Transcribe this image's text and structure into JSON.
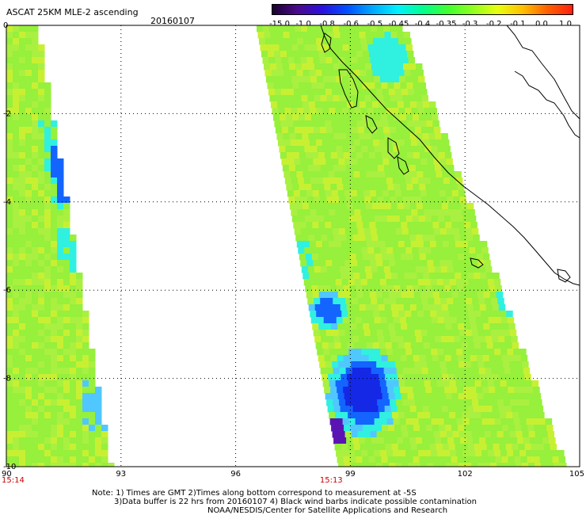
{
  "header": {
    "title": "ASCAT 25KM MLE-2 ascending",
    "date": "20160107"
  },
  "colorbar": {
    "labels": [
      "-15.0",
      "-1.0",
      "-0.8",
      "-0.6",
      "-0.5",
      "-0.45",
      "-0.4",
      "-0.35",
      "-0.3",
      "-0.2",
      "-0.1",
      "0.0",
      "1.0"
    ],
    "colors": [
      "#1a0030",
      "#4b0a8c",
      "#2a10e0",
      "#0050ff",
      "#00a8ff",
      "#00f0ff",
      "#00ff90",
      "#40ff30",
      "#90ff20",
      "#e8ff10",
      "#ffc000",
      "#ff6000",
      "#ff2010"
    ]
  },
  "map": {
    "lon_range": [
      90,
      105
    ],
    "lat_range": [
      -10,
      0
    ],
    "lat_ticks": [
      "0",
      "-2",
      "-4",
      "-6",
      "-8",
      "-10"
    ],
    "lon_ticks": [
      "90",
      "93",
      "96",
      "99",
      "102",
      "105"
    ],
    "pass_times": [
      {
        "lon": 90,
        "label": "15:14"
      },
      {
        "lon": 98.5,
        "label": "15:13"
      }
    ],
    "wind_colors": {
      "base": "#96f03c",
      "light": "#aaf040",
      "yellowgreen": "#c8f032",
      "cyan": "#30f0e0",
      "lightblue": "#50c8ff",
      "blue": "#1464ff",
      "darkblue": "#1428e6",
      "purple": "#5a14b4"
    }
  },
  "notes": {
    "line1": "Note: 1) Times are GMT 2)Times along bottom correspond to measurement at -5S",
    "line2": "3)Data buffer is 22 hrs from 20160107 4) Black wind barbs indicate possible contamination",
    "line3": "NOAA/NESDIS/Center for Satellite Applications and Research"
  }
}
